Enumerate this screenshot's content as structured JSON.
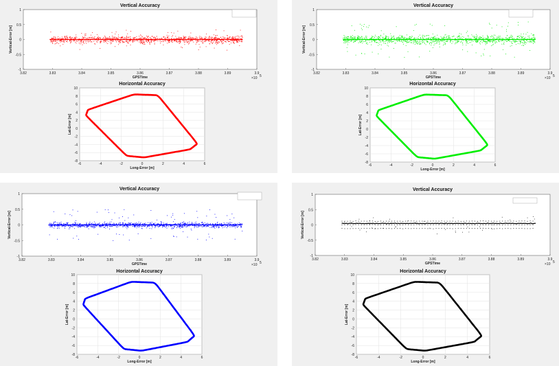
{
  "chart_data": [
    {
      "type": "scatter",
      "title": "Vertical Accuracy",
      "xlabel": "GPSTime",
      "ylabel": "Vertical-Error [m]",
      "x_exponent_label": "×10",
      "x_exponent_power": "5",
      "xlim": [
        3.82,
        3.9
      ],
      "ylim": [
        -1,
        1
      ],
      "xticks": [
        "3.82",
        "3.83",
        "3.84",
        "3.85",
        "3.86",
        "3.87",
        "3.88",
        "3.89",
        "3.9"
      ],
      "yticks": [
        "-1",
        "-0.5",
        "0",
        "0.5",
        "1"
      ],
      "series": [
        {
          "color": "#ff0000",
          "x_range": [
            3.829,
            3.895
          ],
          "spread": 0.12,
          "outliers": 0.35
        }
      ],
      "grid": false,
      "legend": "top-right"
    },
    {
      "type": "scatter",
      "title": "Horizontal Accuracy",
      "xlabel": "Long-Error [m]",
      "ylabel": "Lat-Error [m]",
      "xlim": [
        -6,
        6
      ],
      "ylim": [
        -8,
        10
      ],
      "xticks": [
        "-6",
        "-4",
        "-2",
        "0",
        "2",
        "4",
        "6"
      ],
      "yticks": [
        "-8",
        "-6",
        "-4",
        "-2",
        "0",
        "2",
        "4",
        "6",
        "8",
        "10"
      ],
      "series": [
        {
          "color": "#ff0000",
          "shape": "rounded-parallelogram-loop"
        }
      ],
      "grid": true
    },
    {
      "type": "scatter",
      "title": "Vertical Accuracy",
      "xlabel": "GPSTime",
      "ylabel": "Vertical-Error [m]",
      "x_exponent_label": "×10",
      "x_exponent_power": "5",
      "xlim": [
        3.82,
        3.9
      ],
      "ylim": [
        -1,
        1
      ],
      "xticks": [
        "3.82",
        "3.83",
        "3.84",
        "3.85",
        "3.86",
        "3.87",
        "3.88",
        "3.89",
        "3.9"
      ],
      "yticks": [
        "-1",
        "-0.5",
        "0",
        "0.5",
        "1"
      ],
      "series": [
        {
          "color": "#00ee00",
          "x_range": [
            3.829,
            3.895
          ],
          "spread": 0.15,
          "outliers": 0.6
        }
      ],
      "grid": false,
      "legend": "top-right"
    },
    {
      "type": "scatter",
      "title": "Horizontal Accuracy",
      "xlabel": "Long-Error [m]",
      "ylabel": "Lat-Error [m]",
      "xlim": [
        -6,
        6
      ],
      "ylim": [
        -8,
        10
      ],
      "xticks": [
        "-6",
        "-4",
        "-2",
        "0",
        "2",
        "4",
        "6"
      ],
      "yticks": [
        "-8",
        "-6",
        "-4",
        "-2",
        "0",
        "2",
        "4",
        "6",
        "8",
        "10"
      ],
      "series": [
        {
          "color": "#00ee00",
          "shape": "rounded-parallelogram-loop"
        }
      ],
      "grid": true
    },
    {
      "type": "scatter",
      "title": "Vertical Accuracy",
      "xlabel": "GPSTime",
      "ylabel": "Vertical-Error [m]",
      "x_exponent_label": "×10",
      "x_exponent_power": "5",
      "xlim": [
        3.82,
        3.9
      ],
      "ylim": [
        -1,
        1
      ],
      "xticks": [
        "3.82",
        "3.83",
        "3.84",
        "3.85",
        "3.86",
        "3.87",
        "3.88",
        "3.89",
        "3.9"
      ],
      "yticks": [
        "-1",
        "-0.5",
        "0",
        "0.5",
        "1"
      ],
      "series": [
        {
          "color": "#0000ff",
          "x_range": [
            3.829,
            3.895
          ],
          "spread": 0.08,
          "outliers": 0.5
        }
      ],
      "grid": false,
      "legend": "top-right"
    },
    {
      "type": "scatter",
      "title": "Horizontal Accuracy",
      "xlabel": "Long-Error [m]",
      "ylabel": "Lat-Error [m]",
      "xlim": [
        -6,
        6
      ],
      "ylim": [
        -8,
        10
      ],
      "xticks": [
        "-6",
        "-4",
        "-2",
        "0",
        "2",
        "4",
        "6"
      ],
      "yticks": [
        "-8",
        "-6",
        "-4",
        "-2",
        "0",
        "2",
        "4",
        "6",
        "8",
        "10"
      ],
      "series": [
        {
          "color": "#0000ff",
          "shape": "rounded-parallelogram-loop"
        }
      ],
      "grid": true
    },
    {
      "type": "scatter",
      "title": "Vertical Accuracy",
      "xlabel": "GPSTime",
      "ylabel": "Vertical-Error [m]",
      "x_exponent_label": "×10",
      "x_exponent_power": "5",
      "xlim": [
        3.82,
        3.9
      ],
      "ylim": [
        -1,
        1
      ],
      "xticks": [
        "3.82",
        "3.83",
        "3.84",
        "3.85",
        "3.86",
        "3.87",
        "3.88",
        "3.89",
        "3.9"
      ],
      "yticks": [
        "-1",
        "-0.5",
        "0",
        "0.5",
        "1"
      ],
      "series": [
        {
          "color": "#000000",
          "x_range": [
            3.829,
            3.895
          ],
          "bands": [
            0.05,
            0.0,
            0.12,
            -0.12
          ],
          "outliers": 0.3
        }
      ],
      "grid": false,
      "legend": "top-right"
    },
    {
      "type": "scatter",
      "title": "Horizontal Accuracy",
      "xlabel": "Long-Error [m]",
      "ylabel": "Lat-Error [m]",
      "xlim": [
        -6,
        6
      ],
      "ylim": [
        -8,
        10
      ],
      "xticks": [
        "-6",
        "-4",
        "-2",
        "0",
        "2",
        "4",
        "6"
      ],
      "yticks": [
        "-8",
        "-6",
        "-4",
        "-2",
        "0",
        "2",
        "4",
        "6",
        "8",
        "10"
      ],
      "series": [
        {
          "color": "#000000",
          "shape": "rounded-parallelogram-loop"
        }
      ],
      "grid": true
    }
  ]
}
